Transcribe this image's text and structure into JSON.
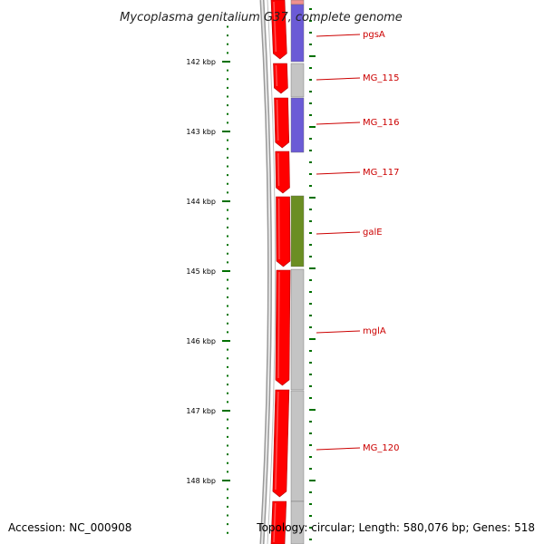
{
  "title": "Mycoplasma genitalium G37, complete genome",
  "footer": {
    "accession": "Accession: NC_000908",
    "summary": "Topology: circular; Length: 580,076 bp; Genes: 518"
  },
  "colors": {
    "background": "#ffffff",
    "backbone": "#7a7a7a",
    "strand_forward": "#ff0000",
    "tick": "#007000",
    "label": "#cc0000",
    "label_line": "#cc0000",
    "cog_blue": "#6b5bd6",
    "cog_gray": "#c4c4c4",
    "cog_green": "#6b8e23"
  },
  "scale": {
    "ticks": [
      {
        "kbp": 142,
        "label": "142 kbp"
      },
      {
        "kbp": 143,
        "label": "143 kbp"
      },
      {
        "kbp": 144,
        "label": "144 kbp"
      },
      {
        "kbp": 145,
        "label": "145 kbp"
      },
      {
        "kbp": 146,
        "label": "146 kbp"
      },
      {
        "kbp": 147,
        "label": "147 kbp"
      },
      {
        "kbp": 148,
        "label": "148 kbp"
      }
    ]
  },
  "genes": [
    {
      "name": "pgsA",
      "cog": "cog_blue"
    },
    {
      "name": "MG_115",
      "cog": "cog_gray"
    },
    {
      "name": "MG_116",
      "cog": "cog_blue"
    },
    {
      "name": "MG_117",
      "cog": ""
    },
    {
      "name": "galE",
      "cog": "cog_green"
    },
    {
      "name": "mglA",
      "cog": "cog_gray"
    },
    {
      "name": "MG_120",
      "cog": "cog_gray"
    }
  ]
}
